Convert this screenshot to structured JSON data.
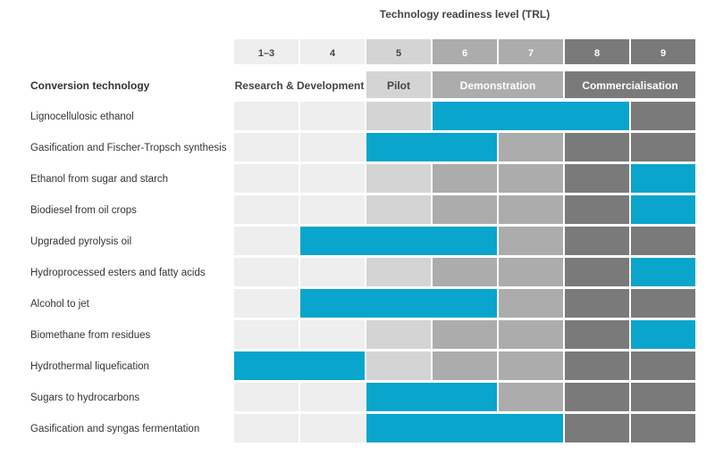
{
  "chart_data": {
    "type": "table",
    "title": "Technology readiness level (TRL)",
    "row_header": "Conversion technology",
    "levels": [
      "1–3",
      "4",
      "5",
      "6",
      "7",
      "8",
      "9"
    ],
    "stages": [
      {
        "label": "Research & Development",
        "levels": [
          "1–3",
          "4"
        ]
      },
      {
        "label": "Pilot",
        "levels": [
          "5"
        ]
      },
      {
        "label": "Demonstration",
        "levels": [
          "6",
          "7"
        ]
      },
      {
        "label": "Commercialisation",
        "levels": [
          "8",
          "9"
        ]
      }
    ],
    "rows": [
      {
        "label": "Lignocellulosic ethanol",
        "current_trl": [
          "6",
          "8"
        ]
      },
      {
        "label": "Gasification and Fischer-Tropsch synthesis",
        "current_trl": [
          "5",
          "6"
        ]
      },
      {
        "label": "Ethanol from sugar and starch",
        "current_trl": [
          "9",
          "9"
        ]
      },
      {
        "label": "Biodiesel from oil crops",
        "current_trl": [
          "9",
          "9"
        ]
      },
      {
        "label": "Upgraded pyrolysis oil",
        "current_trl": [
          "4",
          "6"
        ]
      },
      {
        "label": "Hydroprocessed esters and fatty acids",
        "current_trl": [
          "9",
          "9"
        ]
      },
      {
        "label": "Alcohol to jet",
        "current_trl": [
          "4",
          "6"
        ]
      },
      {
        "label": "Biomethane from residues",
        "current_trl": [
          "9",
          "9"
        ]
      },
      {
        "label": "Hydrothermal liquefication",
        "current_trl": [
          "1–3",
          "4"
        ]
      },
      {
        "label": "Sugars to hydrocarbons",
        "current_trl": [
          "5",
          "6"
        ]
      },
      {
        "label": "Gasification and syngas fermentation",
        "current_trl": [
          "5",
          "7"
        ]
      }
    ],
    "colors": {
      "highlight": "#0aa5cc",
      "rd_cell": "#eeeeee",
      "pilot_cell": "#d4d4d4",
      "demo_cell": "#acacac",
      "commercial_cell": "#7a7a7a",
      "header_text_light": "#ffffff",
      "header_text_dark": "#444444",
      "label_text": "#333333"
    }
  }
}
